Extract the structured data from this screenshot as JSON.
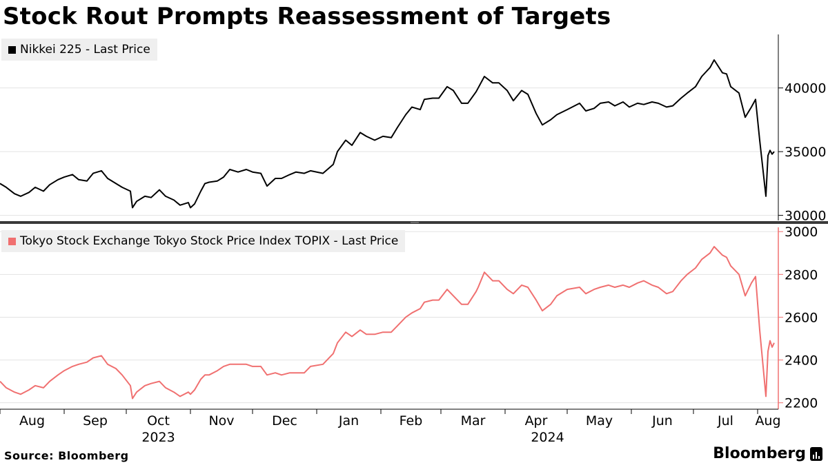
{
  "title": "Stock Rout Prompts Reassessment of Targets",
  "source": "Source: Bloomberg",
  "brand": "Bloomberg",
  "colors": {
    "nikkei": "#000000",
    "topix": "#f07070",
    "grid": "#e3e3e3",
    "legend_bg": "#efefef"
  },
  "legend": {
    "nikkei": "Nikkei 225 - Last Price",
    "topix": "Tokyo Stock Exchange Tokyo Stock Price Index TOPIX - Last Price"
  },
  "chart_data": [
    {
      "type": "line",
      "name": "Nikkei 225 - Last Price",
      "ylim": [
        29600,
        44200
      ],
      "yticks": [
        30000,
        35000,
        40000
      ],
      "grid": true,
      "x_months": [
        "Aug",
        "Sep",
        "Oct",
        "Nov",
        "Dec",
        "Jan",
        "Feb",
        "Mar",
        "Apr",
        "May",
        "Jun",
        "Jul",
        "Aug"
      ],
      "x_years": [
        "2023",
        "2024"
      ],
      "x_start": "2023-08-01",
      "x_end": "2024-08-09",
      "points": [
        [
          "2023-08-01",
          32500
        ],
        [
          "2023-08-04",
          32200
        ],
        [
          "2023-08-08",
          31700
        ],
        [
          "2023-08-11",
          31500
        ],
        [
          "2023-08-15",
          31800
        ],
        [
          "2023-08-18",
          32200
        ],
        [
          "2023-08-22",
          31900
        ],
        [
          "2023-08-25",
          32400
        ],
        [
          "2023-08-29",
          32800
        ],
        [
          "2023-09-01",
          33000
        ],
        [
          "2023-09-05",
          33200
        ],
        [
          "2023-09-08",
          32800
        ],
        [
          "2023-09-12",
          32700
        ],
        [
          "2023-09-15",
          33300
        ],
        [
          "2023-09-19",
          33500
        ],
        [
          "2023-09-22",
          32900
        ],
        [
          "2023-09-26",
          32500
        ],
        [
          "2023-09-29",
          32200
        ],
        [
          "2023-10-03",
          31900
        ],
        [
          "2023-10-04",
          30600
        ],
        [
          "2023-10-06",
          31100
        ],
        [
          "2023-10-10",
          31500
        ],
        [
          "2023-10-13",
          31400
        ],
        [
          "2023-10-17",
          32000
        ],
        [
          "2023-10-20",
          31500
        ],
        [
          "2023-10-24",
          31200
        ],
        [
          "2023-10-27",
          30800
        ],
        [
          "2023-10-31",
          31000
        ],
        [
          "2023-11-01",
          30600
        ],
        [
          "2023-11-03",
          30900
        ],
        [
          "2023-11-06",
          31900
        ],
        [
          "2023-11-08",
          32500
        ],
        [
          "2023-11-10",
          32600
        ],
        [
          "2023-11-14",
          32700
        ],
        [
          "2023-11-17",
          33000
        ],
        [
          "2023-11-20",
          33600
        ],
        [
          "2023-11-24",
          33400
        ],
        [
          "2023-11-28",
          33600
        ],
        [
          "2023-12-01",
          33400
        ],
        [
          "2023-12-05",
          33300
        ],
        [
          "2023-12-08",
          32300
        ],
        [
          "2023-12-12",
          32900
        ],
        [
          "2023-12-15",
          32900
        ],
        [
          "2023-12-19",
          33200
        ],
        [
          "2023-12-22",
          33400
        ],
        [
          "2023-12-26",
          33300
        ],
        [
          "2023-12-29",
          33500
        ],
        [
          "2024-01-04",
          33300
        ],
        [
          "2024-01-09",
          34000
        ],
        [
          "2024-01-11",
          35000
        ],
        [
          "2024-01-15",
          35900
        ],
        [
          "2024-01-18",
          35500
        ],
        [
          "2024-01-22",
          36500
        ],
        [
          "2024-01-25",
          36200
        ],
        [
          "2024-01-29",
          35900
        ],
        [
          "2024-02-02",
          36200
        ],
        [
          "2024-02-06",
          36100
        ],
        [
          "2024-02-09",
          36900
        ],
        [
          "2024-02-13",
          37900
        ],
        [
          "2024-02-16",
          38500
        ],
        [
          "2024-02-20",
          38300
        ],
        [
          "2024-02-22",
          39100
        ],
        [
          "2024-02-26",
          39200
        ],
        [
          "2024-02-29",
          39200
        ],
        [
          "2024-03-04",
          40100
        ],
        [
          "2024-03-07",
          39800
        ],
        [
          "2024-03-11",
          38800
        ],
        [
          "2024-03-14",
          38800
        ],
        [
          "2024-03-18",
          39700
        ],
        [
          "2024-03-19",
          40000
        ],
        [
          "2024-03-22",
          40900
        ],
        [
          "2024-03-26",
          40400
        ],
        [
          "2024-03-29",
          40400
        ],
        [
          "2024-04-02",
          39800
        ],
        [
          "2024-04-05",
          39000
        ],
        [
          "2024-04-09",
          39800
        ],
        [
          "2024-04-12",
          39500
        ],
        [
          "2024-04-16",
          38000
        ],
        [
          "2024-04-19",
          37100
        ],
        [
          "2024-04-23",
          37500
        ],
        [
          "2024-04-26",
          37900
        ],
        [
          "2024-05-01",
          38300
        ],
        [
          "2024-05-07",
          38800
        ],
        [
          "2024-05-10",
          38200
        ],
        [
          "2024-05-14",
          38400
        ],
        [
          "2024-05-17",
          38800
        ],
        [
          "2024-05-21",
          38900
        ],
        [
          "2024-05-24",
          38600
        ],
        [
          "2024-05-28",
          38900
        ],
        [
          "2024-05-31",
          38500
        ],
        [
          "2024-06-04",
          38800
        ],
        [
          "2024-06-07",
          38700
        ],
        [
          "2024-06-11",
          38900
        ],
        [
          "2024-06-14",
          38800
        ],
        [
          "2024-06-18",
          38500
        ],
        [
          "2024-06-21",
          38600
        ],
        [
          "2024-06-25",
          39200
        ],
        [
          "2024-06-28",
          39600
        ],
        [
          "2024-07-02",
          40100
        ],
        [
          "2024-07-05",
          40900
        ],
        [
          "2024-07-09",
          41600
        ],
        [
          "2024-07-11",
          42200
        ],
        [
          "2024-07-15",
          41190
        ],
        [
          "2024-07-17",
          41100
        ],
        [
          "2024-07-19",
          40100
        ],
        [
          "2024-07-23",
          39600
        ],
        [
          "2024-07-26",
          37700
        ],
        [
          "2024-07-29",
          38500
        ],
        [
          "2024-07-31",
          39100
        ],
        [
          "2024-08-02",
          35900
        ],
        [
          "2024-08-05",
          31500
        ],
        [
          "2024-08-06",
          34700
        ],
        [
          "2024-08-07",
          35100
        ],
        [
          "2024-08-08",
          34800
        ],
        [
          "2024-08-09",
          35000
        ]
      ]
    },
    {
      "type": "line",
      "name": "Tokyo Stock Exchange Tokyo Stock Price Index TOPIX - Last Price",
      "ylim": [
        2170,
        3020
      ],
      "yticks": [
        2200,
        2400,
        2600,
        2800,
        3000
      ],
      "grid": true,
      "x_start": "2023-08-01",
      "x_end": "2024-08-09",
      "points": [
        [
          "2023-08-01",
          2300
        ],
        [
          "2023-08-04",
          2270
        ],
        [
          "2023-08-08",
          2250
        ],
        [
          "2023-08-11",
          2240
        ],
        [
          "2023-08-15",
          2260
        ],
        [
          "2023-08-18",
          2280
        ],
        [
          "2023-08-22",
          2270
        ],
        [
          "2023-08-25",
          2300
        ],
        [
          "2023-08-29",
          2330
        ],
        [
          "2023-09-01",
          2350
        ],
        [
          "2023-09-05",
          2370
        ],
        [
          "2023-09-08",
          2380
        ],
        [
          "2023-09-12",
          2390
        ],
        [
          "2023-09-15",
          2410
        ],
        [
          "2023-09-19",
          2420
        ],
        [
          "2023-09-22",
          2380
        ],
        [
          "2023-09-26",
          2360
        ],
        [
          "2023-09-29",
          2330
        ],
        [
          "2023-10-03",
          2280
        ],
        [
          "2023-10-04",
          2220
        ],
        [
          "2023-10-06",
          2250
        ],
        [
          "2023-10-10",
          2280
        ],
        [
          "2023-10-13",
          2290
        ],
        [
          "2023-10-17",
          2300
        ],
        [
          "2023-10-20",
          2270
        ],
        [
          "2023-10-24",
          2250
        ],
        [
          "2023-10-27",
          2230
        ],
        [
          "2023-10-31",
          2250
        ],
        [
          "2023-11-01",
          2240
        ],
        [
          "2023-11-03",
          2260
        ],
        [
          "2023-11-06",
          2310
        ],
        [
          "2023-11-08",
          2330
        ],
        [
          "2023-11-10",
          2330
        ],
        [
          "2023-11-14",
          2350
        ],
        [
          "2023-11-17",
          2370
        ],
        [
          "2023-11-20",
          2380
        ],
        [
          "2023-11-24",
          2380
        ],
        [
          "2023-11-28",
          2380
        ],
        [
          "2023-12-01",
          2370
        ],
        [
          "2023-12-05",
          2370
        ],
        [
          "2023-12-08",
          2330
        ],
        [
          "2023-12-12",
          2340
        ],
        [
          "2023-12-15",
          2330
        ],
        [
          "2023-12-19",
          2340
        ],
        [
          "2023-12-22",
          2340
        ],
        [
          "2023-12-26",
          2340
        ],
        [
          "2023-12-29",
          2370
        ],
        [
          "2024-01-04",
          2380
        ],
        [
          "2024-01-09",
          2430
        ],
        [
          "2024-01-11",
          2480
        ],
        [
          "2024-01-15",
          2530
        ],
        [
          "2024-01-18",
          2510
        ],
        [
          "2024-01-22",
          2540
        ],
        [
          "2024-01-25",
          2520
        ],
        [
          "2024-01-29",
          2520
        ],
        [
          "2024-02-02",
          2530
        ],
        [
          "2024-02-06",
          2530
        ],
        [
          "2024-02-09",
          2560
        ],
        [
          "2024-02-13",
          2600
        ],
        [
          "2024-02-16",
          2620
        ],
        [
          "2024-02-20",
          2640
        ],
        [
          "2024-02-22",
          2670
        ],
        [
          "2024-02-26",
          2680
        ],
        [
          "2024-02-29",
          2680
        ],
        [
          "2024-03-04",
          2730
        ],
        [
          "2024-03-07",
          2700
        ],
        [
          "2024-03-11",
          2660
        ],
        [
          "2024-03-14",
          2660
        ],
        [
          "2024-03-18",
          2720
        ],
        [
          "2024-03-19",
          2740
        ],
        [
          "2024-03-22",
          2810
        ],
        [
          "2024-03-26",
          2770
        ],
        [
          "2024-03-29",
          2770
        ],
        [
          "2024-04-02",
          2730
        ],
        [
          "2024-04-05",
          2710
        ],
        [
          "2024-04-09",
          2750
        ],
        [
          "2024-04-12",
          2740
        ],
        [
          "2024-04-16",
          2680
        ],
        [
          "2024-04-19",
          2630
        ],
        [
          "2024-04-23",
          2660
        ],
        [
          "2024-04-26",
          2700
        ],
        [
          "2024-05-01",
          2730
        ],
        [
          "2024-05-07",
          2740
        ],
        [
          "2024-05-10",
          2710
        ],
        [
          "2024-05-14",
          2730
        ],
        [
          "2024-05-17",
          2740
        ],
        [
          "2024-05-21",
          2750
        ],
        [
          "2024-05-24",
          2740
        ],
        [
          "2024-05-28",
          2750
        ],
        [
          "2024-05-31",
          2740
        ],
        [
          "2024-06-04",
          2760
        ],
        [
          "2024-06-07",
          2770
        ],
        [
          "2024-06-11",
          2750
        ],
        [
          "2024-06-14",
          2740
        ],
        [
          "2024-06-18",
          2710
        ],
        [
          "2024-06-21",
          2720
        ],
        [
          "2024-06-25",
          2770
        ],
        [
          "2024-06-28",
          2800
        ],
        [
          "2024-07-02",
          2830
        ],
        [
          "2024-07-05",
          2870
        ],
        [
          "2024-07-09",
          2900
        ],
        [
          "2024-07-11",
          2930
        ],
        [
          "2024-07-15",
          2890
        ],
        [
          "2024-07-17",
          2880
        ],
        [
          "2024-07-19",
          2840
        ],
        [
          "2024-07-23",
          2800
        ],
        [
          "2024-07-26",
          2700
        ],
        [
          "2024-07-29",
          2760
        ],
        [
          "2024-07-31",
          2790
        ],
        [
          "2024-08-02",
          2540
        ],
        [
          "2024-08-05",
          2230
        ],
        [
          "2024-08-06",
          2440
        ],
        [
          "2024-08-07",
          2490
        ],
        [
          "2024-08-08",
          2460
        ],
        [
          "2024-08-09",
          2480
        ]
      ]
    }
  ]
}
